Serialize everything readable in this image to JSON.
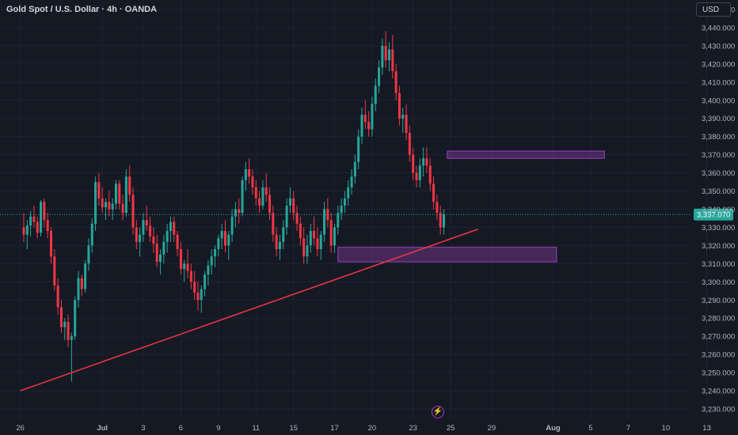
{
  "header": {
    "symbol_title": "Gold Spot / U.S. Dollar · 4h · OANDA",
    "currency_button": "USD"
  },
  "colors": {
    "background": "#151924",
    "grid": "#1f2330",
    "up": "#26a69a",
    "down": "#f23645",
    "trendline": "#f23645",
    "zone_fill": "rgba(126,60,153,0.45)",
    "zone_stroke": "#9c3fc4",
    "price_tag": "#26a69a",
    "axis_text": "#b2b5be"
  },
  "event_marker": {
    "icon": "lightning-icon",
    "glyph": "⚡"
  },
  "chart_data": {
    "type": "candlestick",
    "title": "Gold Spot / U.S. Dollar · 4h · OANDA",
    "currency": "USD",
    "ylim": [
      3225,
      3455
    ],
    "y_ticks": [
      3230,
      3240,
      3250,
      3260,
      3270,
      3280,
      3290,
      3300,
      3310,
      3320,
      3330,
      3340,
      3350,
      3360,
      3370,
      3380,
      3390,
      3400,
      3410,
      3420,
      3430,
      3440,
      3450
    ],
    "y_tick_labels": [
      "3,230.000",
      "3,240.000",
      "3,250.000",
      "3,260.000",
      "3,270.000",
      "3,280.000",
      "3,290.000",
      "3,300.000",
      "3,310.000",
      "3,320.000",
      "3,330.000",
      "3,340.000",
      "3,350.000",
      "3,360.000",
      "3,370.000",
      "3,380.000",
      "3,390.000",
      "3,400.000",
      "3,410.000",
      "3,420.000",
      "3,430.000",
      "3,440.000",
      "3,450.000"
    ],
    "x_ticks": [
      {
        "label": "26",
        "bar": -1
      },
      {
        "label": "Jul",
        "bar": 23
      },
      {
        "label": "3",
        "bar": 35
      },
      {
        "label": "6",
        "bar": 46
      },
      {
        "label": "9",
        "bar": 57
      },
      {
        "label": "11",
        "bar": 68
      },
      {
        "label": "15",
        "bar": 79
      },
      {
        "label": "17",
        "bar": 91
      },
      {
        "label": "20",
        "bar": 102
      },
      {
        "label": "23",
        "bar": 114
      },
      {
        "label": "25",
        "bar": 125
      },
      {
        "label": "29",
        "bar": 137
      },
      {
        "label": "Aug",
        "bar": 155
      },
      {
        "label": "5",
        "bar": 166
      },
      {
        "label": "7",
        "bar": 177
      },
      {
        "label": "10",
        "bar": 188
      },
      {
        "label": "13",
        "bar": 200
      }
    ],
    "last_price": 3337.07,
    "last_price_label": "3,337.070",
    "trendline": {
      "from": {
        "bar": -1,
        "price": 3240
      },
      "to": {
        "bar": 133,
        "price": 3329
      }
    },
    "zones": [
      {
        "name": "resistance-zone",
        "bar_start": 124,
        "bar_end": 170,
        "price_top": 3372,
        "price_bottom": 3368
      },
      {
        "name": "support-zone",
        "bar_start": 92,
        "bar_end": 156,
        "price_top": 3319,
        "price_bottom": 3311
      }
    ],
    "candles": [
      [
        3330,
        3338,
        3322,
        3326
      ],
      [
        3326,
        3334,
        3318,
        3331
      ],
      [
        3331,
        3339,
        3325,
        3336
      ],
      [
        3336,
        3342,
        3330,
        3333
      ],
      [
        3333,
        3336,
        3324,
        3327
      ],
      [
        3327,
        3345,
        3325,
        3344
      ],
      [
        3344,
        3346,
        3330,
        3334
      ],
      [
        3334,
        3338,
        3324,
        3328
      ],
      [
        3328,
        3330,
        3310,
        3314
      ],
      [
        3314,
        3318,
        3295,
        3298
      ],
      [
        3298,
        3302,
        3282,
        3286
      ],
      [
        3286,
        3290,
        3272,
        3275
      ],
      [
        3275,
        3280,
        3268,
        3278
      ],
      [
        3278,
        3282,
        3264,
        3268
      ],
      [
        3268,
        3272,
        3245,
        3270
      ],
      [
        3270,
        3292,
        3268,
        3290
      ],
      [
        3290,
        3306,
        3286,
        3302
      ],
      [
        3302,
        3304,
        3292,
        3296
      ],
      [
        3296,
        3312,
        3294,
        3310
      ],
      [
        3310,
        3324,
        3306,
        3320
      ],
      [
        3320,
        3335,
        3316,
        3332
      ],
      [
        3332,
        3358,
        3328,
        3355
      ],
      [
        3355,
        3360,
        3342,
        3346
      ],
      [
        3346,
        3352,
        3338,
        3341
      ],
      [
        3341,
        3346,
        3334,
        3344
      ],
      [
        3344,
        3350,
        3336,
        3340
      ],
      [
        3340,
        3346,
        3334,
        3343
      ],
      [
        3343,
        3356,
        3340,
        3354
      ],
      [
        3354,
        3356,
        3340,
        3343
      ],
      [
        3343,
        3348,
        3334,
        3338
      ],
      [
        3338,
        3362,
        3336,
        3358
      ],
      [
        3358,
        3364,
        3344,
        3348
      ],
      [
        3348,
        3352,
        3326,
        3330
      ],
      [
        3330,
        3334,
        3318,
        3322
      ],
      [
        3322,
        3330,
        3314,
        3326
      ],
      [
        3326,
        3338,
        3322,
        3334
      ],
      [
        3334,
        3342,
        3328,
        3331
      ],
      [
        3331,
        3336,
        3322,
        3325
      ],
      [
        3325,
        3330,
        3316,
        3321
      ],
      [
        3321,
        3326,
        3308,
        3311
      ],
      [
        3311,
        3318,
        3304,
        3315
      ],
      [
        3315,
        3326,
        3310,
        3322
      ],
      [
        3322,
        3332,
        3316,
        3328
      ],
      [
        3328,
        3336,
        3322,
        3333
      ],
      [
        3333,
        3336,
        3322,
        3326
      ],
      [
        3326,
        3328,
        3314,
        3318
      ],
      [
        3318,
        3322,
        3304,
        3307
      ],
      [
        3307,
        3312,
        3300,
        3310
      ],
      [
        3310,
        3318,
        3302,
        3306
      ],
      [
        3306,
        3310,
        3296,
        3300
      ],
      [
        3300,
        3306,
        3290,
        3294
      ],
      [
        3294,
        3300,
        3284,
        3290
      ],
      [
        3290,
        3298,
        3283,
        3296
      ],
      [
        3296,
        3306,
        3292,
        3304
      ],
      [
        3304,
        3312,
        3298,
        3309
      ],
      [
        3309,
        3318,
        3304,
        3314
      ],
      [
        3314,
        3320,
        3308,
        3318
      ],
      [
        3318,
        3326,
        3314,
        3324
      ],
      [
        3324,
        3332,
        3318,
        3328
      ],
      [
        3328,
        3334,
        3316,
        3320
      ],
      [
        3320,
        3328,
        3312,
        3326
      ],
      [
        3326,
        3340,
        3322,
        3336
      ],
      [
        3336,
        3344,
        3330,
        3340
      ],
      [
        3340,
        3346,
        3332,
        3338
      ],
      [
        3338,
        3358,
        3336,
        3356
      ],
      [
        3356,
        3366,
        3350,
        3362
      ],
      [
        3362,
        3368,
        3354,
        3358
      ],
      [
        3358,
        3362,
        3348,
        3352
      ],
      [
        3352,
        3356,
        3342,
        3346
      ],
      [
        3346,
        3350,
        3338,
        3342
      ],
      [
        3342,
        3356,
        3340,
        3352
      ],
      [
        3352,
        3360,
        3344,
        3348
      ],
      [
        3348,
        3352,
        3334,
        3338
      ],
      [
        3338,
        3342,
        3322,
        3326
      ],
      [
        3326,
        3330,
        3314,
        3318
      ],
      [
        3318,
        3326,
        3312,
        3322
      ],
      [
        3322,
        3334,
        3318,
        3330
      ],
      [
        3330,
        3346,
        3326,
        3342
      ],
      [
        3342,
        3352,
        3338,
        3346
      ],
      [
        3346,
        3350,
        3334,
        3338
      ],
      [
        3338,
        3342,
        3328,
        3332
      ],
      [
        3332,
        3336,
        3320,
        3324
      ],
      [
        3324,
        3330,
        3310,
        3314
      ],
      [
        3314,
        3326,
        3310,
        3320
      ],
      [
        3320,
        3332,
        3316,
        3328
      ],
      [
        3328,
        3336,
        3320,
        3324
      ],
      [
        3324,
        3330,
        3314,
        3318
      ],
      [
        3318,
        3328,
        3312,
        3326
      ],
      [
        3326,
        3344,
        3322,
        3340
      ],
      [
        3340,
        3346,
        3330,
        3334
      ],
      [
        3334,
        3338,
        3316,
        3320
      ],
      [
        3320,
        3332,
        3316,
        3330
      ],
      [
        3330,
        3342,
        3326,
        3338
      ],
      [
        3338,
        3346,
        3334,
        3342
      ],
      [
        3342,
        3350,
        3338,
        3346
      ],
      [
        3346,
        3356,
        3342,
        3352
      ],
      [
        3352,
        3362,
        3348,
        3358
      ],
      [
        3358,
        3370,
        3354,
        3366
      ],
      [
        3366,
        3384,
        3362,
        3380
      ],
      [
        3380,
        3396,
        3376,
        3392
      ],
      [
        3392,
        3400,
        3384,
        3388
      ],
      [
        3388,
        3394,
        3380,
        3384
      ],
      [
        3384,
        3402,
        3380,
        3398
      ],
      [
        3398,
        3412,
        3394,
        3408
      ],
      [
        3408,
        3422,
        3404,
        3418
      ],
      [
        3418,
        3434,
        3414,
        3430
      ],
      [
        3430,
        3438,
        3418,
        3422
      ],
      [
        3422,
        3432,
        3416,
        3428
      ],
      [
        3428,
        3436,
        3412,
        3416
      ],
      [
        3416,
        3420,
        3400,
        3404
      ],
      [
        3404,
        3408,
        3386,
        3390
      ],
      [
        3390,
        3396,
        3382,
        3392
      ],
      [
        3392,
        3398,
        3378,
        3382
      ],
      [
        3382,
        3386,
        3366,
        3370
      ],
      [
        3370,
        3374,
        3356,
        3360
      ],
      [
        3360,
        3364,
        3352,
        3356
      ],
      [
        3356,
        3368,
        3352,
        3364
      ],
      [
        3364,
        3374,
        3358,
        3368
      ],
      [
        3368,
        3374,
        3360,
        3364
      ],
      [
        3364,
        3368,
        3350,
        3354
      ],
      [
        3354,
        3358,
        3340,
        3344
      ],
      [
        3344,
        3348,
        3334,
        3338
      ],
      [
        3338,
        3342,
        3326,
        3330
      ],
      [
        3330,
        3340,
        3326,
        3337.07
      ]
    ]
  },
  "layout": {
    "bar_spacing": 4.313,
    "x_origin": 30,
    "plot_left": 0,
    "plot_right": 872,
    "plot_top": 12,
    "plot_bottom": 530,
    "price_axis_x": 886
  }
}
